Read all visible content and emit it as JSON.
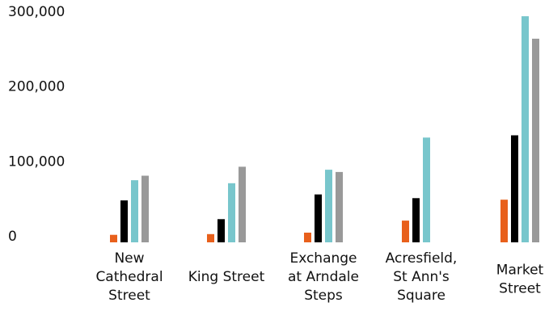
{
  "chart_data": {
    "type": "bar",
    "title": "",
    "xlabel": "",
    "ylabel": "",
    "ylim": [
      0,
      300000
    ],
    "y_ticks": [
      {
        "value": 0,
        "label": "0"
      },
      {
        "value": 100000,
        "label": "100,000"
      },
      {
        "value": 200000,
        "label": "200,000"
      },
      {
        "value": 300000,
        "label": "300,000"
      }
    ],
    "grid": false,
    "legend": "none",
    "categories": [
      {
        "lines": [
          "New",
          "Cathedral",
          "Street"
        ]
      },
      {
        "lines": [
          "King Street"
        ]
      },
      {
        "lines": [
          "Exchange",
          "at Arndale",
          "Steps"
        ]
      },
      {
        "lines": [
          "Acresfield,",
          "St Ann's",
          "Square"
        ]
      },
      {
        "lines": [
          "Market",
          "Street"
        ]
      }
    ],
    "series": [
      {
        "color": "#e8601c",
        "values": [
          10000,
          11000,
          13000,
          29000,
          57000
        ]
      },
      {
        "color": "#000000",
        "values": [
          56000,
          31000,
          64000,
          59000,
          143000
        ]
      },
      {
        "color": "#78c6cc",
        "values": [
          83000,
          79000,
          97000,
          140000,
          302000
        ]
      },
      {
        "color": "#999999",
        "values": [
          89000,
          101000,
          94000,
          null,
          272000
        ]
      }
    ]
  }
}
